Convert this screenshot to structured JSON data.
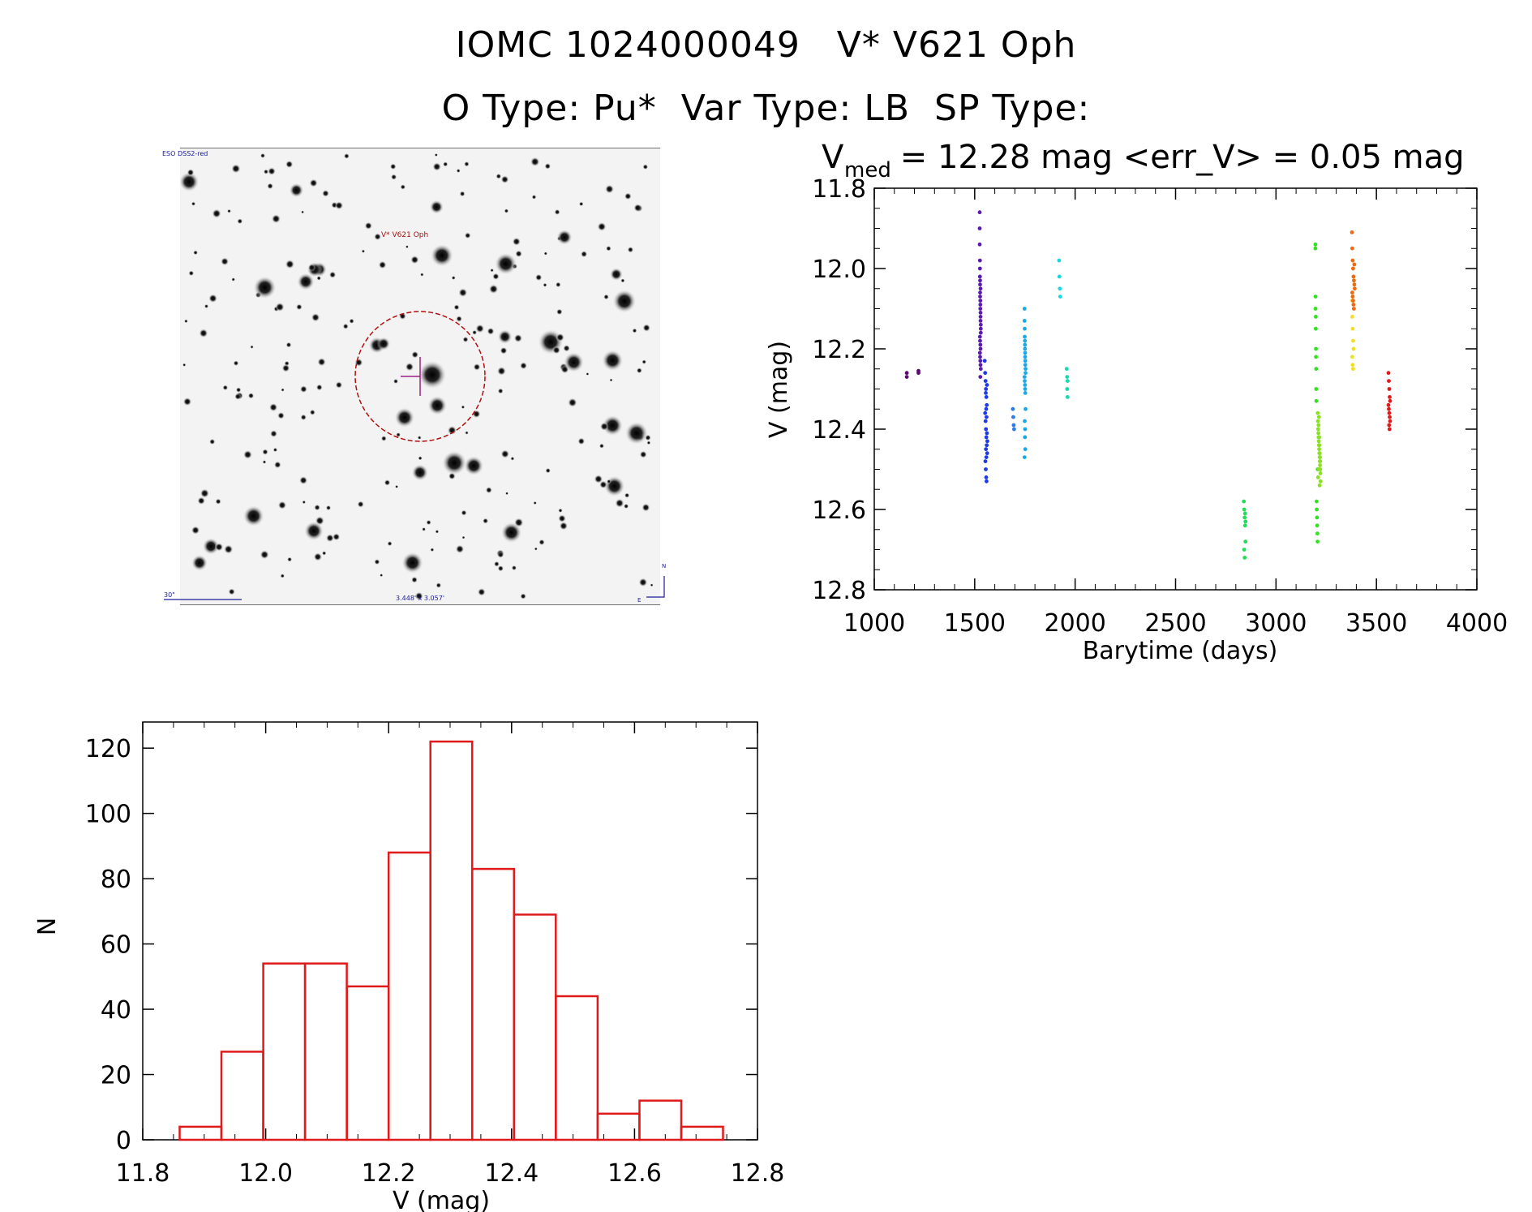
{
  "header": {
    "title_line1": "IOMC 1024000049   V* V621 Oph",
    "title_line2": "O Type: Pu*  Var Type: LB  SP Type:"
  },
  "stamp": {
    "survey_label": "ESO DSS2-red",
    "target_label": "V* V621 Oph",
    "scale_label": "30\"",
    "fov_label": "3.448' x 3.057'",
    "north_label": "N",
    "east_label": "E"
  },
  "chart_data": [
    {
      "type": "scatter",
      "title": {
        "prefix": "V",
        "sub": "med",
        "rest": " = 12.28 mag <err_V> = 0.05 mag"
      },
      "xlabel": "Barytime (days)",
      "ylabel": "V (mag)",
      "xlim": [
        1000,
        4000
      ],
      "ylim": [
        12.8,
        11.8
      ],
      "y_reversed": true,
      "xticks": [
        1000,
        1500,
        2000,
        2500,
        3000,
        3500,
        4000
      ],
      "yticks": [
        11.8,
        12.0,
        12.2,
        12.4,
        12.6,
        12.8
      ],
      "xtick_labels": [
        "1000",
        "1500",
        "2000",
        "2500",
        "3000",
        "3500",
        "4000"
      ],
      "ytick_labels": [
        "11.8",
        "12.0",
        "12.2",
        "12.4",
        "12.6",
        "12.8"
      ],
      "groups": [
        {
          "color": "#5a0a6e",
          "x": [
            1162,
            1162,
            1220,
            1220
          ],
          "y": [
            12.27,
            12.26,
            12.26,
            12.255
          ]
        },
        {
          "color": "#5a1ab0",
          "x": [
            1525,
            1525,
            1525,
            1526,
            1526,
            1526,
            1527,
            1527,
            1527,
            1528,
            1528,
            1528,
            1529,
            1529,
            1529,
            1530,
            1530,
            1530,
            1526,
            1527,
            1528,
            1529,
            1526,
            1527,
            1528,
            1529,
            1530,
            1528,
            1527,
            1529
          ],
          "y": [
            11.86,
            11.9,
            11.94,
            11.98,
            12.0,
            12.02,
            12.04,
            12.06,
            12.07,
            12.08,
            12.09,
            12.1,
            12.11,
            12.12,
            12.13,
            12.14,
            12.15,
            12.16,
            12.17,
            12.18,
            12.19,
            12.2,
            12.21,
            12.22,
            12.23,
            12.24,
            12.25,
            12.27,
            12.03,
            12.05
          ]
        },
        {
          "color": "#1e3ae6",
          "x": [
            1550,
            1552,
            1554,
            1556,
            1558,
            1560,
            1552,
            1554,
            1556,
            1558,
            1560,
            1562,
            1553,
            1555,
            1557,
            1559,
            1561,
            1555,
            1557,
            1559,
            1561,
            1563,
            1556,
            1558
          ],
          "y": [
            12.23,
            12.26,
            12.28,
            12.3,
            12.32,
            12.34,
            12.36,
            12.38,
            12.4,
            12.42,
            12.44,
            12.46,
            12.48,
            12.5,
            12.52,
            12.53,
            12.29,
            12.31,
            12.35,
            12.37,
            12.41,
            12.43,
            12.45,
            12.47
          ]
        },
        {
          "color": "#2a7ae8",
          "x": [
            1690,
            1692,
            1694,
            1696
          ],
          "y": [
            12.35,
            12.37,
            12.39,
            12.4
          ]
        },
        {
          "color": "#1aa8e6",
          "x": [
            1748,
            1748,
            1749,
            1749,
            1750,
            1750,
            1751,
            1751,
            1752,
            1752,
            1753,
            1753,
            1748,
            1749,
            1750,
            1751,
            1752,
            1753,
            1749,
            1751,
            1750,
            1752,
            1748,
            1750
          ],
          "y": [
            12.1,
            12.13,
            12.15,
            12.17,
            12.19,
            12.2,
            12.21,
            12.22,
            12.23,
            12.24,
            12.25,
            12.26,
            12.27,
            12.28,
            12.29,
            12.3,
            12.31,
            12.35,
            12.38,
            12.4,
            12.42,
            12.45,
            12.47,
            12.18
          ]
        },
        {
          "color": "#16d8e0",
          "x": [
            1920,
            1922,
            1924,
            1926
          ],
          "y": [
            11.98,
            12.02,
            12.05,
            12.07
          ]
        },
        {
          "color": "#17d8b0",
          "x": [
            1958,
            1960,
            1962,
            1960,
            1962
          ],
          "y": [
            12.25,
            12.27,
            12.28,
            12.3,
            12.32
          ]
        },
        {
          "color": "#22dd55",
          "x": [
            2840,
            2842,
            2844,
            2846,
            2848,
            2842,
            2844,
            2846,
            2848
          ],
          "y": [
            12.58,
            12.6,
            12.62,
            12.64,
            12.68,
            12.7,
            12.72,
            12.61,
            12.63
          ]
        },
        {
          "color": "#33e022",
          "x": [
            3196,
            3196,
            3197,
            3197,
            3198,
            3198,
            3199,
            3199,
            3200,
            3200,
            3201,
            3202,
            3203,
            3204,
            3205,
            3206,
            3207,
            3208
          ],
          "y": [
            11.94,
            11.95,
            12.07,
            12.1,
            12.12,
            12.15,
            12.2,
            12.22,
            12.25,
            12.3,
            12.33,
            12.58,
            12.6,
            12.62,
            12.64,
            12.66,
            12.68,
            12.5
          ]
        },
        {
          "color": "#8ae022",
          "x": [
            3208,
            3209,
            3210,
            3211,
            3212,
            3213,
            3214,
            3215,
            3216,
            3217,
            3218,
            3219,
            3220,
            3221,
            3222,
            3210,
            3212,
            3214,
            3216,
            3218,
            3220,
            3213,
            3215,
            3217,
            3219
          ],
          "y": [
            12.36,
            12.38,
            12.4,
            12.41,
            12.42,
            12.43,
            12.44,
            12.45,
            12.46,
            12.47,
            12.48,
            12.49,
            12.5,
            12.51,
            12.53,
            12.52,
            12.39,
            12.37,
            12.44,
            12.46,
            12.48,
            12.5,
            12.42,
            12.54,
            12.47
          ]
        },
        {
          "color": "#f0e020",
          "x": [
            3378,
            3380,
            3382,
            3384,
            3386,
            3380,
            3382,
            3384
          ],
          "y": [
            12.08,
            12.12,
            12.15,
            12.18,
            12.2,
            12.22,
            12.24,
            12.25
          ]
        },
        {
          "color": "#ee6a10",
          "x": [
            3378,
            3380,
            3382,
            3384,
            3386,
            3388,
            3390,
            3392,
            3380,
            3382,
            3384,
            3386,
            3388,
            3390
          ],
          "y": [
            11.91,
            11.95,
            11.98,
            12.0,
            12.02,
            12.03,
            12.04,
            12.05,
            12.06,
            12.07,
            12.08,
            12.09,
            12.1,
            11.99
          ]
        },
        {
          "color": "#e01a1a",
          "x": [
            3560,
            3562,
            3564,
            3566,
            3568,
            3560,
            3562,
            3564,
            3566,
            3568,
            3563,
            3565
          ],
          "y": [
            12.26,
            12.28,
            12.3,
            12.32,
            12.33,
            12.34,
            12.35,
            12.36,
            12.37,
            12.38,
            12.39,
            12.4
          ]
        }
      ]
    },
    {
      "type": "bar",
      "xlabel": "V (mag)",
      "ylabel": "N",
      "xlim": [
        11.8,
        12.8
      ],
      "ylim": [
        0,
        128
      ],
      "xticks": [
        11.8,
        12.0,
        12.2,
        12.4,
        12.6,
        12.8
      ],
      "yticks": [
        0,
        20,
        40,
        60,
        80,
        100,
        120
      ],
      "xtick_labels": [
        "11.8",
        "12.0",
        "12.2",
        "12.4",
        "12.6",
        "12.8"
      ],
      "ytick_labels": [
        "0",
        "20",
        "40",
        "60",
        "80",
        "100",
        "120"
      ],
      "bin_edges": [
        11.86,
        11.928,
        11.996,
        12.064,
        12.132,
        12.2,
        12.268,
        12.336,
        12.404,
        12.472,
        12.54,
        12.608,
        12.676,
        12.744
      ],
      "values": [
        4,
        27,
        54,
        54,
        47,
        88,
        122,
        83,
        69,
        44,
        8,
        12,
        4
      ],
      "color": "#e01a1a"
    }
  ]
}
